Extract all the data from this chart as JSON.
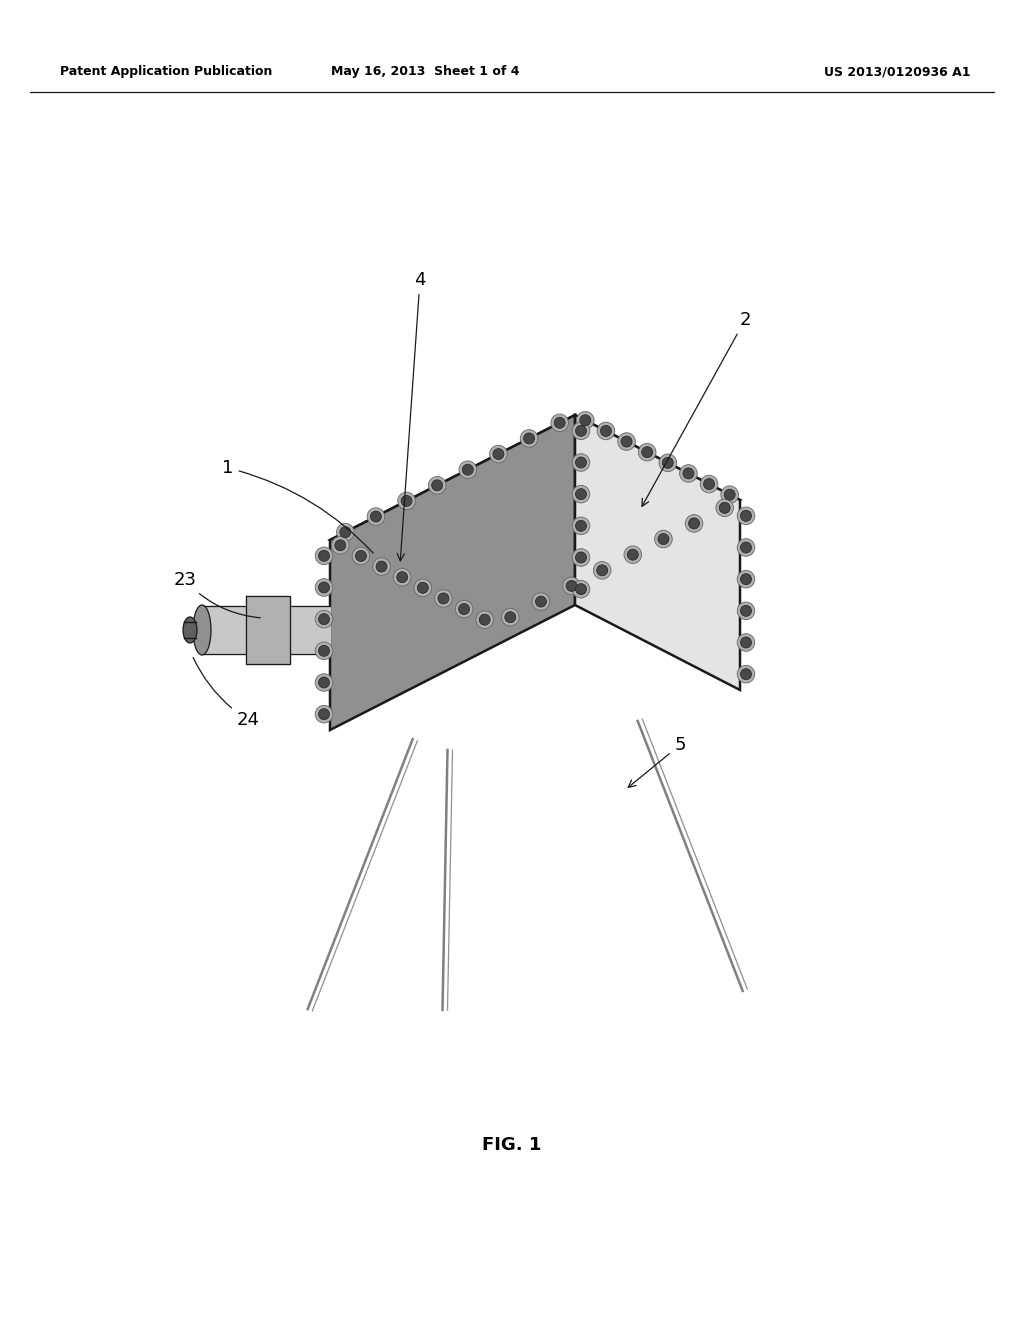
{
  "header_left": "Patent Application Publication",
  "header_mid": "May 16, 2013  Sheet 1 of 4",
  "header_right": "US 2013/0120936 A1",
  "fig_label": "FIG. 1",
  "bg_color": "#ffffff",
  "line_color": "#1a1a1a",
  "face_top_color": "#c8c8c8",
  "face_front_color": "#909090",
  "face_right_color": "#e4e4e4",
  "bolt_color": "#484848",
  "leg_color": "#a0a0a0",
  "label_fontsize": 13,
  "header_fontsize": 9,
  "fig_label_fontsize": 13
}
